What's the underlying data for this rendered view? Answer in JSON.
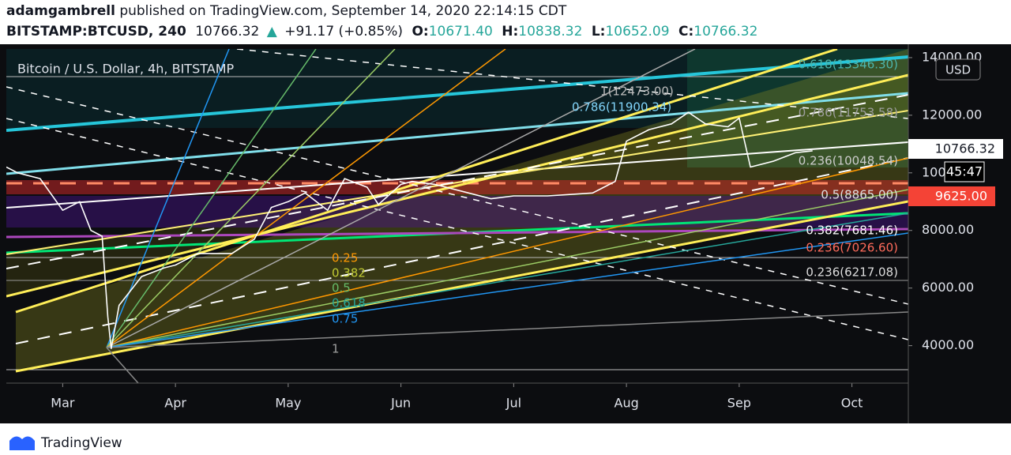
{
  "header": {
    "author": "adamgambrell",
    "published": "published on TradingView.com, September 14, 2020 22:14:15 CDT",
    "symbol": "BITSTAMP:BTCUSD, 240",
    "last": "10766.32",
    "change": "+91.17 (+0.85%)",
    "open_label": "O:",
    "open": "10671.40",
    "high_label": "H:",
    "high": "10838.32",
    "low_label": "L:",
    "low": "10652.09",
    "close_label": "C:",
    "close": "10766.32",
    "currency": "USD",
    "last_price_label": "10766.32",
    "countdown": "45:47",
    "level_price_label": "9625.00",
    "brand": "TradingView"
  },
  "chart_data": {
    "type": "line",
    "x": [
      0.5,
      0.6,
      0.8,
      1.0,
      1.15,
      1.25,
      1.35,
      1.4,
      1.43,
      1.5,
      1.7,
      1.9,
      2.0,
      2.2,
      2.5,
      2.7,
      2.85,
      3.0,
      3.15,
      3.35,
      3.5,
      3.7,
      3.8,
      4.0,
      4.1,
      4.3,
      4.4,
      4.6,
      4.8,
      5.0,
      5.3,
      5.5,
      5.7,
      5.9,
      6.0,
      6.2,
      6.4,
      6.55,
      6.7,
      6.9,
      7.0,
      7.1,
      7.3,
      7.5,
      7.65
    ],
    "series": [
      {
        "name": "Bitcoin / U.S. Dollar, 4h, BITSTAMP",
        "color": "#ffffff",
        "values": [
          10200,
          10000,
          9800,
          8700,
          9000,
          8000,
          7800,
          5000,
          3900,
          5400,
          6400,
          6700,
          6800,
          7200,
          7200,
          7700,
          8800,
          9000,
          9300,
          8700,
          9800,
          9500,
          8900,
          9600,
          9700,
          9600,
          9500,
          9300,
          9100,
          9200,
          9200,
          9250,
          9300,
          9700,
          11100,
          11500,
          11700,
          12100,
          11700,
          11600,
          11900,
          10200,
          10400,
          10700,
          10766
        ]
      }
    ],
    "xlim": [
      0.5,
      8.5
    ],
    "xticks": [
      {
        "value": 1,
        "label": "Mar"
      },
      {
        "value": 2,
        "label": "Apr"
      },
      {
        "value": 3,
        "label": "May"
      },
      {
        "value": 4,
        "label": "Jun"
      },
      {
        "value": 5,
        "label": "Jul"
      },
      {
        "value": 6,
        "label": "Aug"
      },
      {
        "value": 7,
        "label": "Sep"
      },
      {
        "value": 8,
        "label": "Oct"
      }
    ],
    "ylim": [
      2700,
      14300
    ],
    "yticks": [
      {
        "value": 4000,
        "label": "4000.00"
      },
      {
        "value": 6000,
        "label": "6000.00"
      },
      {
        "value": 8000,
        "label": "8000.00"
      },
      {
        "value": 10000,
        "label": "10000.00"
      },
      {
        "value": 12000,
        "label": "12000.00"
      },
      {
        "value": 14000,
        "label": "14000.00"
      }
    ],
    "annotations": [
      "0.618(13346.30)",
      "1(12473.00)",
      "0.786(11900.34)",
      "0.786(11753.58)",
      "0.236(10048.54)",
      "0.5(8865.00)",
      "0.382(7681.46)",
      "0.236(7026.60)",
      "0.236(6217.08)",
      "0.25",
      "0.382",
      "0.5",
      "0.618",
      "0.75",
      "1"
    ]
  }
}
